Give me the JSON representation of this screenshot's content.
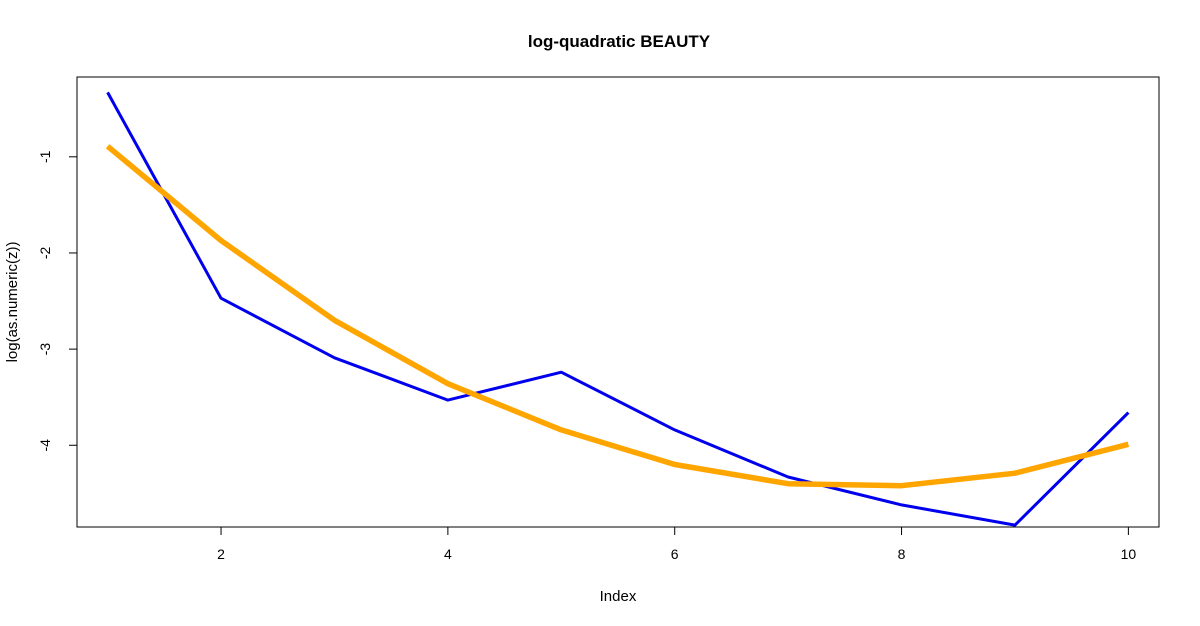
{
  "chart_data": {
    "type": "line",
    "title": "log-quadratic BEAUTY",
    "xlabel": "Index",
    "ylabel": "log(as.numeric(z))",
    "xlim": [
      0.73,
      10.27
    ],
    "ylim": [
      -4.85,
      -0.17
    ],
    "x_ticks": [
      2,
      4,
      6,
      8,
      10
    ],
    "y_ticks": [
      -4,
      -3,
      -2,
      -1
    ],
    "grid": false,
    "legend": "none",
    "x": [
      1,
      2,
      3,
      4,
      5,
      6,
      7,
      8,
      9,
      10
    ],
    "series": [
      {
        "color": "#0000EE",
        "width": 3,
        "values": [
          -0.33,
          -2.47,
          -3.09,
          -3.53,
          -3.24,
          -3.84,
          -4.33,
          -4.62,
          -4.83,
          -3.66
        ]
      },
      {
        "color": "#FFA500",
        "width": 5.5,
        "values": [
          -0.89,
          -1.87,
          -2.7,
          -3.36,
          -3.84,
          -4.2,
          -4.4,
          -4.42,
          -4.29,
          -3.99
        ]
      }
    ]
  }
}
